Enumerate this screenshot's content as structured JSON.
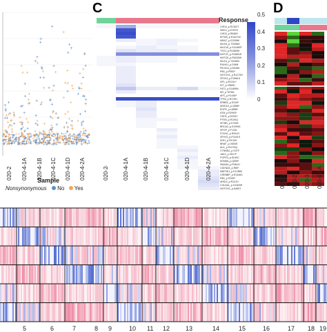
{
  "panel_c": {
    "letter": "C",
    "legend_title": "Response",
    "legend_ticks": [
      "0.5",
      "0.4",
      "0.3",
      "0.2",
      "0.1",
      "0"
    ],
    "samples": [
      "020-2",
      "020-4-1A",
      "020-4-1B",
      "020-4-1C",
      "020-4-1D",
      "020-4-2A"
    ],
    "genes": [
      "CHD4_p.R1162T",
      "SMG1_p.E997K",
      "CHD3_p.R848H",
      "EP300_p.R1627W",
      "MKI67_p.E2058K",
      "MUC6_p.T2008M",
      "MUC16_p.S11489P",
      "TSC2_p.R1680W",
      "KMT2C_p.R4581W",
      "KMT2D_p.R5030W",
      "MUC4_p.T4096N",
      "RUNX1_p.D96N",
      "PIK3CA_p.E545K",
      "RB1_p.R552*",
      "NOTCH1_p.R1279H",
      "ZFHX3_p.E2661K",
      "NF1_p.R1241*",
      "KIT_p.V560D",
      "FAT1_p.D1895N",
      "AR_p.T878A",
      "APC_p.R1450*",
      "TP53_p.R175H",
      "ERBB2_p.S310F",
      "ARID1A_p.Q586*",
      "EGFR_p.L858R",
      "ATM_p.R2993*",
      "CDH1_p.D254Y",
      "PTEN_p.R130Q",
      "SF3B1_p.K700E",
      "BRCA2_p.E1993K",
      "SPOP_p.F133L",
      "FOXA1_p.R261G",
      "ZFHX3_p.P2441S",
      "IDH1_p.R132H",
      "BRAF_p.V600E",
      "ALK_p.R1275Q",
      "CTNNB1_p.S37F",
      "JAK2_p.V617F",
      "FGFR3_p.S249C",
      "KDM6A_p.Q555*",
      "SMAD4_p.R361H",
      "CDKN2A_p.R80*",
      "MAP3K1_p.E1286K",
      "CREBBP_p.R1446C",
      "RB1_p.R455*",
      "ARID2_p.R1211*",
      "COL5A1_p.G1600R",
      "NOTCH1_p.A465T"
    ]
  },
  "panel_d": {
    "letter": "D",
    "samples": [
      "020-1",
      "020-2",
      "020-3",
      "020-4-1A"
    ]
  },
  "panel_b": {
    "x_title": "Sample",
    "samples": [
      "020-2",
      "020-4-1A",
      "020-4-1B",
      "020-4-1C",
      "020-4-1D",
      "020-4-2A"
    ],
    "legend_title": "Nonsynonymous",
    "legend_items": [
      {
        "label": "No",
        "color": "#5b8fc9"
      },
      {
        "label": "Yes",
        "color": "#f2a55a"
      }
    ]
  },
  "panel_e": {
    "chromosomes": [
      "5",
      "6",
      "7",
      "8",
      "9",
      "10",
      "11",
      "12",
      "13",
      "14",
      "15",
      "16",
      "17",
      "18",
      "19"
    ]
  },
  "colors": {
    "response_high": "#2f45c8",
    "response_low": "#ffffff",
    "annot_green": "#6fd39a",
    "annot_pink": "#e8788c",
    "gain": "#e75b7e",
    "loss": "#3a56c9"
  }
}
